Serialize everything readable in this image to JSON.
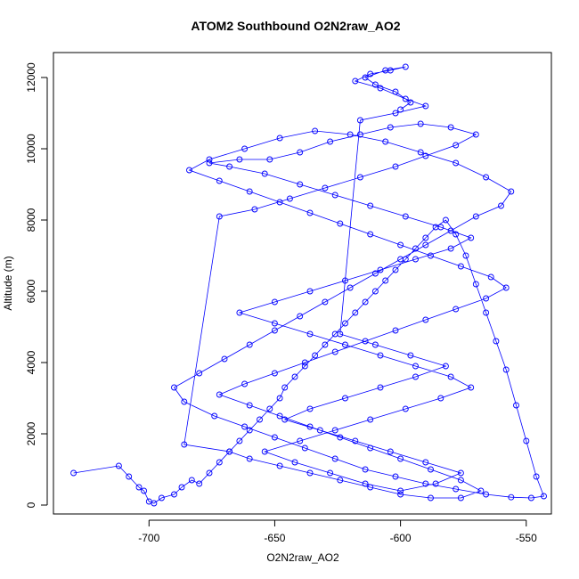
{
  "chart_data": {
    "type": "scatter",
    "title": "ATOM2 Southbound O2N2raw_AO2",
    "xlabel": "O2N2raw_AO2",
    "ylabel": "Altitude (m)",
    "xlim": [
      -738,
      -540
    ],
    "ylim": [
      -250,
      12700
    ],
    "xticks": [
      -700,
      -650,
      -600,
      -550
    ],
    "yticks": [
      0,
      2000,
      4000,
      6000,
      8000,
      10000,
      12000
    ],
    "marker": "open-circle",
    "connected_by_lines": true,
    "grid": false,
    "legend": "none",
    "color": "#0000ff",
    "series": [
      {
        "x": [
          -730,
          -712,
          -708,
          -704,
          -702,
          -700,
          -698,
          -695,
          -690,
          -687,
          -683,
          -680,
          -676,
          -672,
          -668,
          -664,
          -660,
          -656,
          -652,
          -648,
          -646,
          -642,
          -638,
          -634,
          -630,
          -626,
          -622,
          -618,
          -614,
          -610,
          -606,
          -602,
          -598,
          -594,
          -590,
          -586,
          -582,
          -578,
          -574,
          -570,
          -566,
          -562,
          -558,
          -554,
          -550,
          -546,
          -543,
          -548,
          -556,
          -566,
          -578,
          -590,
          -602,
          -614,
          -626,
          -638,
          -650,
          -662,
          -674,
          -686,
          -690,
          -680,
          -670,
          -660,
          -650,
          -640,
          -630,
          -620,
          -610,
          -600,
          -590,
          -580,
          -570,
          -560,
          -556,
          -566,
          -578,
          -592,
          -606,
          -620,
          -634,
          -648,
          -662,
          -676,
          -684,
          -672,
          -660,
          -648,
          -636,
          -624,
          -612,
          -600,
          -588,
          -576,
          -564,
          -558,
          -566,
          -578,
          -590,
          -602,
          -614,
          -626,
          -638,
          -650,
          -662,
          -672,
          -660,
          -648,
          -636,
          -624,
          -612,
          -600,
          -588,
          -576,
          -568,
          -576,
          -588,
          -600,
          -612,
          -624,
          -636,
          -648,
          -660,
          -668,
          -686,
          -672,
          -658,
          -644,
          -630,
          -616,
          -602,
          -590,
          -578,
          -570,
          -580,
          -592,
          -604,
          -616,
          -628,
          -640,
          -652,
          -664,
          -676,
          -668,
          -654,
          -640,
          -626,
          -612,
          -598,
          -584,
          -572,
          -580,
          -594,
          -608,
          -622,
          -636,
          -650,
          -664,
          -650,
          -636,
          -622,
          -608,
          -594,
          -580,
          -572,
          -584,
          -598,
          -612,
          -626,
          -640,
          -654,
          -642,
          -628,
          -614,
          -600,
          -586,
          -576,
          -590,
          -604,
          -618,
          -632,
          -646,
          -636,
          -622,
          -608,
          -594,
          -582,
          -596,
          -610,
          -624,
          -616,
          -602,
          -590,
          -598,
          -608,
          -618,
          -612,
          -604,
          -598,
          -606,
          -614,
          -610,
          -602,
          -596,
          -600
        ],
        "y": [
          900,
          1100,
          800,
          500,
          400,
          100,
          50,
          200,
          300,
          500,
          700,
          600,
          900,
          1200,
          1500,
          1800,
          2100,
          2400,
          2700,
          3000,
          3300,
          3600,
          3900,
          4200,
          4500,
          4800,
          5100,
          5400,
          5700,
          6000,
          6300,
          6600,
          6900,
          7200,
          7500,
          7800,
          8000,
          7600,
          7000,
          6200,
          5400,
          4600,
          3800,
          2800,
          1800,
          800,
          250,
          200,
          220,
          300,
          450,
          600,
          800,
          1000,
          1300,
          1600,
          1900,
          2200,
          2500,
          2900,
          3300,
          3700,
          4100,
          4500,
          4900,
          5300,
          5700,
          6100,
          6500,
          6900,
          7300,
          7700,
          8100,
          8400,
          8800,
          9200,
          9600,
          9900,
          10200,
          10400,
          10500,
          10300,
          10000,
          9700,
          9400,
          9100,
          8800,
          8500,
          8200,
          7900,
          7600,
          7300,
          7000,
          6700,
          6400,
          6100,
          5800,
          5500,
          5200,
          4900,
          4600,
          4300,
          4000,
          3700,
          3400,
          3100,
          2800,
          2500,
          2200,
          1900,
          1600,
          1300,
          1000,
          700,
          400,
          200,
          200,
          300,
          500,
          700,
          900,
          1100,
          1300,
          1500,
          1700,
          8100,
          8300,
          8600,
          8900,
          9200,
          9500,
          9800,
          10100,
          10400,
          10600,
          10700,
          10600,
          10400,
          10200,
          9900,
          9700,
          9700,
          9600,
          9500,
          9300,
          9000,
          8700,
          8400,
          8100,
          7800,
          7500,
          7200,
          6900,
          6600,
          6300,
          6000,
          5700,
          5400,
          5100,
          4800,
          4500,
          4200,
          3900,
          3600,
          3300,
          3000,
          2700,
          2400,
          2100,
          1800,
          1500,
          1200,
          900,
          600,
          400,
          600,
          900,
          1200,
          1500,
          1800,
          2100,
          2400,
          2700,
          3000,
          3300,
          3600,
          3900,
          4200,
          4500,
          4800,
          10800,
          11000,
          11200,
          11400,
          11700,
          11900,
          12100,
          12200,
          12300,
          12200,
          12000,
          11800,
          11600,
          11300,
          11100
        ]
      }
    ]
  }
}
